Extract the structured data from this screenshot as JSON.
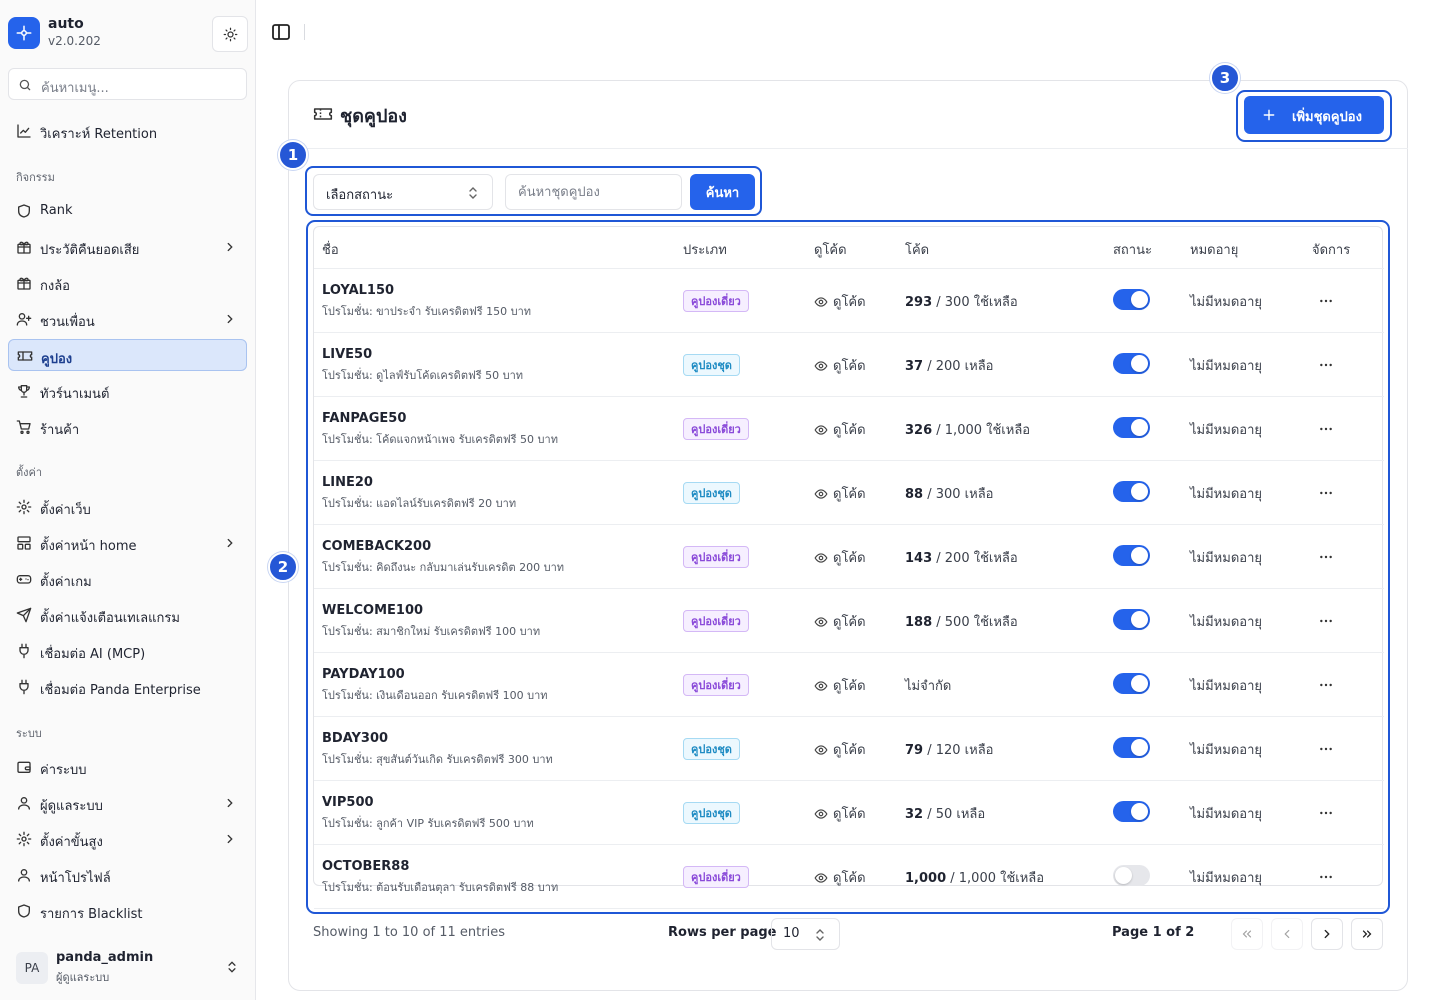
{
  "app": {
    "name": "auto",
    "version": "v2.0.202"
  },
  "sidebar": {
    "search_placeholder": "ค้นหาเมนู...",
    "top_items": [
      {
        "label": "วิเคราะห์ Retention",
        "icon": "chart-line-icon"
      }
    ],
    "sections": [
      {
        "label": "กิจกรรม",
        "items": [
          {
            "label": "Rank",
            "icon": "shield-icon"
          },
          {
            "label": "ประวัติคืนยอดเสีย",
            "icon": "gift-icon",
            "chevron": true
          },
          {
            "label": "กงล้อ",
            "icon": "gift-icon"
          },
          {
            "label": "ชวนเพื่อน",
            "icon": "user-plus-icon",
            "chevron": true
          },
          {
            "label": "คูปอง",
            "icon": "ticket-icon",
            "active": true
          },
          {
            "label": "ทัวร์นาเมนต์",
            "icon": "trophy-icon"
          },
          {
            "label": "ร้านค้า",
            "icon": "cart-icon"
          }
        ]
      },
      {
        "label": "ตั้งค่า",
        "items": [
          {
            "label": "ตั้งค่าเว็บ",
            "icon": "gear-icon"
          },
          {
            "label": "ตั้งค่าหน้า home",
            "icon": "layout-icon",
            "chevron": true
          },
          {
            "label": "ตั้งค่าเกม",
            "icon": "gamepad-icon"
          },
          {
            "label": "ตั้งค่าแจ้งเตือนเทเลแกรม",
            "icon": "send-icon"
          },
          {
            "label": "เชื่อมต่อ AI (MCP)",
            "icon": "plug-icon"
          },
          {
            "label": "เชื่อมต่อ Panda Enterprise",
            "icon": "plug-icon"
          }
        ]
      },
      {
        "label": "ระบบ",
        "items": [
          {
            "label": "ค่าระบบ",
            "icon": "wallet-icon"
          },
          {
            "label": "ผู้ดูแลระบบ",
            "icon": "user-icon",
            "chevron": true
          },
          {
            "label": "ตั้งค่าขั้นสูง",
            "icon": "gear-icon",
            "chevron": true
          },
          {
            "label": "หน้าโปรไฟล์",
            "icon": "user-icon"
          },
          {
            "label": "รายการ Blacklist",
            "icon": "shield-icon"
          }
        ]
      }
    ],
    "user": {
      "initials": "PA",
      "name": "panda_admin",
      "role": "ผู้ดูแลระบบ"
    }
  },
  "page": {
    "title": "ชุดคูปอง",
    "add_button": "เพิ่มชุดคูปอง",
    "filter": {
      "status_placeholder": "เลือกสถานะ",
      "search_placeholder": "ค้นหาชุดคูปอง",
      "search_button": "ค้นหา"
    },
    "annotations": [
      "1",
      "2",
      "3"
    ]
  },
  "table": {
    "columns": [
      "ชื่อ",
      "ประเภท",
      "ดูโค้ด",
      "โค้ด",
      "สถานะ",
      "หมดอายุ",
      "จัดการ"
    ],
    "view_label": "ดูโค้ด",
    "rows": [
      {
        "code": "LOYAL150",
        "desc": "โปรโมชั่น: ขาประจำ รับเครดิตฟรี 150 บาท",
        "type": "คูปองเดี่ยว",
        "type_kind": "single",
        "count_strong": "293",
        "count_rest": " / 300 ใช้เหลือ",
        "status_on": true,
        "expire": "ไม่มีหมดอายุ"
      },
      {
        "code": "LIVE50",
        "desc": "โปรโมชั่น: ดูไลฟ์รับโค้ดเครดิตฟรี 50 บาท",
        "type": "คูปองชุด",
        "type_kind": "set",
        "count_strong": "37",
        "count_rest": " / 200 เหลือ",
        "status_on": true,
        "expire": "ไม่มีหมดอายุ"
      },
      {
        "code": "FANPAGE50",
        "desc": "โปรโมชั่น: โค้ดแจกหน้าเพจ รับเครดิตฟรี 50 บาท",
        "type": "คูปองเดี่ยว",
        "type_kind": "single",
        "count_strong": "326",
        "count_rest": " / 1,000 ใช้เหลือ",
        "status_on": true,
        "expire": "ไม่มีหมดอายุ"
      },
      {
        "code": "LINE20",
        "desc": "โปรโมชั่น: แอดไลน์รับเครดิตฟรี 20 บาท",
        "type": "คูปองชุด",
        "type_kind": "set",
        "count_strong": "88",
        "count_rest": " / 300 เหลือ",
        "status_on": true,
        "expire": "ไม่มีหมดอายุ"
      },
      {
        "code": "COMEBACK200",
        "desc": "โปรโมชั่น: คิดถึงนะ กลับมาเล่นรับเครดิต 200 บาท",
        "type": "คูปองเดี่ยว",
        "type_kind": "single",
        "count_strong": "143",
        "count_rest": " / 200 ใช้เหลือ",
        "status_on": true,
        "expire": "ไม่มีหมดอายุ"
      },
      {
        "code": "WELCOME100",
        "desc": "โปรโมชั่น: สมาชิกใหม่ รับเครดิตฟรี 100 บาท",
        "type": "คูปองเดี่ยว",
        "type_kind": "single",
        "count_strong": "188",
        "count_rest": " / 500 ใช้เหลือ",
        "status_on": true,
        "expire": "ไม่มีหมดอายุ"
      },
      {
        "code": "PAYDAY100",
        "desc": "โปรโมชั่น: เงินเดือนออก รับเครดิตฟรี 100 บาท",
        "type": "คูปองเดี่ยว",
        "type_kind": "single",
        "count_strong": "",
        "count_rest": "ไม่จำกัด",
        "status_on": true,
        "expire": "ไม่มีหมดอายุ"
      },
      {
        "code": "BDAY300",
        "desc": "โปรโมชั่น: สุขสันต์วันเกิด รับเครดิตฟรี 300 บาท",
        "type": "คูปองชุด",
        "type_kind": "set",
        "count_strong": "79",
        "count_rest": " / 120 เหลือ",
        "status_on": true,
        "expire": "ไม่มีหมดอายุ"
      },
      {
        "code": "VIP500",
        "desc": "โปรโมชั่น: ลูกค้า VIP รับเครดิตฟรี 500 บาท",
        "type": "คูปองชุด",
        "type_kind": "set",
        "count_strong": "32",
        "count_rest": " / 50 เหลือ",
        "status_on": true,
        "expire": "ไม่มีหมดอายุ"
      },
      {
        "code": "OCTOBER88",
        "desc": "โปรโมชั่น: ต้อนรับเดือนตุลา รับเครดิตฟรี 88 บาท",
        "type": "คูปองเดี่ยว",
        "type_kind": "single",
        "count_strong": "1,000",
        "count_rest": " / 1,000 ใช้เหลือ",
        "status_on": false,
        "expire": "ไม่มีหมดอายุ"
      }
    ]
  },
  "footer": {
    "showing": "Showing 1 to 10 of 11 entries",
    "rows_label": "Rows per page",
    "rows_value": "10",
    "page_info": "Page 1 of 2"
  },
  "colors": {
    "accent": "#2563eb",
    "annotation": "#2557d6"
  }
}
